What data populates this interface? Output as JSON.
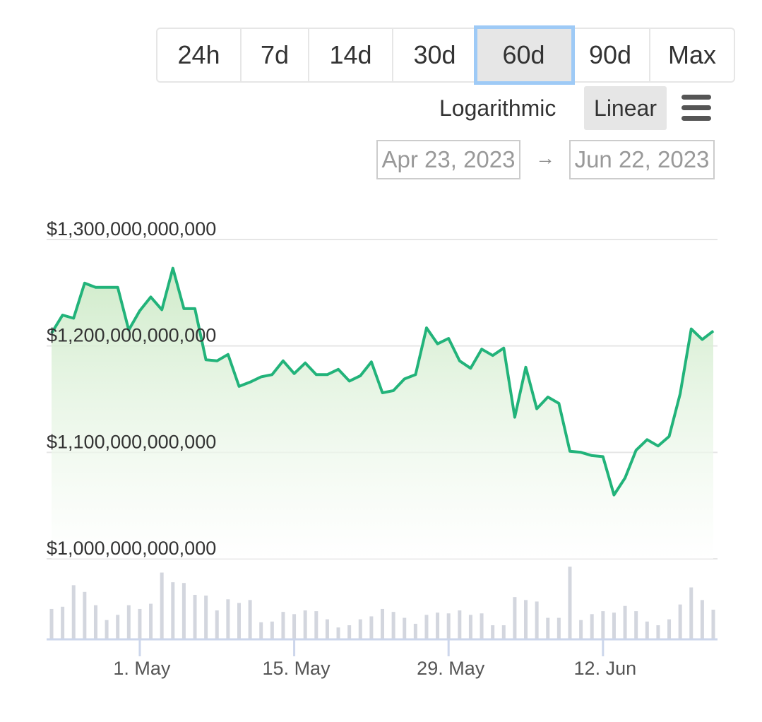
{
  "range_selector": {
    "buttons": [
      "24h",
      "7d",
      "14d",
      "30d",
      "60d",
      "90d",
      "Max"
    ],
    "selected": "60d"
  },
  "scale": {
    "logarithmic_label": "Logarithmic",
    "linear_label": "Linear",
    "selected": "Linear"
  },
  "menu_icon": "hamburger-menu-icon",
  "date_range": {
    "from": "Apr 23, 2023",
    "arrow": "→",
    "to": "Jun 22, 2023"
  },
  "colors": {
    "line": "#22b37a",
    "area_top": "#cdeac7",
    "volume": "#d3d6de",
    "grid": "#e6e6e6",
    "selected_outline": "#9ecaf6"
  },
  "chart_data": {
    "type": "area",
    "title": "",
    "xlabel": "",
    "ylabel": "",
    "ylim": [
      1000000000000,
      1300000000000
    ],
    "y_tick_labels": [
      "$1,300,000,000,000",
      "$1,200,000,000,000",
      "$1,100,000,000,000",
      "$1,000,000,000,000"
    ],
    "y_ticks": [
      1300000000000,
      1200000000000,
      1100000000000,
      1000000000000
    ],
    "x_tick_labels": [
      "1. May",
      "15. May",
      "29. May",
      "12. Jun"
    ],
    "x_ticks": [
      "2023-05-01",
      "2023-05-15",
      "2023-05-29",
      "2023-06-12"
    ],
    "x_start": "2023-04-23",
    "x_end": "2023-06-22",
    "grid": true,
    "series": [
      {
        "values": [
          [
            "2023-04-23",
            1212000000000
          ],
          [
            "2023-04-24",
            1229000000000
          ],
          [
            "2023-04-25",
            1226000000000
          ],
          [
            "2023-04-26",
            1259000000000
          ],
          [
            "2023-04-27",
            1255000000000
          ],
          [
            "2023-04-28",
            1255000000000
          ],
          [
            "2023-04-29",
            1255000000000
          ],
          [
            "2023-04-30",
            1215000000000
          ],
          [
            "2023-05-01",
            1233000000000
          ],
          [
            "2023-05-02",
            1246000000000
          ],
          [
            "2023-05-03",
            1234000000000
          ],
          [
            "2023-05-04",
            1273000000000
          ],
          [
            "2023-05-05",
            1235000000000
          ],
          [
            "2023-05-06",
            1235000000000
          ],
          [
            "2023-05-07",
            1187000000000
          ],
          [
            "2023-05-08",
            1186000000000
          ],
          [
            "2023-05-09",
            1192000000000
          ],
          [
            "2023-05-10",
            1162000000000
          ],
          [
            "2023-05-11",
            1166000000000
          ],
          [
            "2023-05-12",
            1171000000000
          ],
          [
            "2023-05-13",
            1173000000000
          ],
          [
            "2023-05-14",
            1186000000000
          ],
          [
            "2023-05-15",
            1174000000000
          ],
          [
            "2023-05-16",
            1184000000000
          ],
          [
            "2023-05-17",
            1173000000000
          ],
          [
            "2023-05-18",
            1173000000000
          ],
          [
            "2023-05-19",
            1178000000000
          ],
          [
            "2023-05-20",
            1167000000000
          ],
          [
            "2023-05-21",
            1172000000000
          ],
          [
            "2023-05-22",
            1185000000000
          ],
          [
            "2023-05-23",
            1156000000000
          ],
          [
            "2023-05-24",
            1158000000000
          ],
          [
            "2023-05-25",
            1169000000000
          ],
          [
            "2023-05-26",
            1173000000000
          ],
          [
            "2023-05-27",
            1217000000000
          ],
          [
            "2023-05-28",
            1202000000000
          ],
          [
            "2023-05-29",
            1207000000000
          ],
          [
            "2023-05-30",
            1186000000000
          ],
          [
            "2023-05-31",
            1179000000000
          ],
          [
            "2023-06-01",
            1197000000000
          ],
          [
            "2023-06-02",
            1191000000000
          ],
          [
            "2023-06-03",
            1198000000000
          ],
          [
            "2023-06-04",
            1133000000000
          ],
          [
            "2023-06-05",
            1180000000000
          ],
          [
            "2023-06-06",
            1141000000000
          ],
          [
            "2023-06-07",
            1152000000000
          ],
          [
            "2023-06-08",
            1146000000000
          ],
          [
            "2023-06-09",
            1101000000000
          ],
          [
            "2023-06-10",
            1100000000000
          ],
          [
            "2023-06-11",
            1097000000000
          ],
          [
            "2023-06-12",
            1096000000000
          ],
          [
            "2023-06-13",
            1060000000000
          ],
          [
            "2023-06-14",
            1076000000000
          ],
          [
            "2023-06-15",
            1102000000000
          ],
          [
            "2023-06-16",
            1112000000000
          ],
          [
            "2023-06-17",
            1106000000000
          ],
          [
            "2023-06-18",
            1115000000000
          ],
          [
            "2023-06-19",
            1155000000000
          ],
          [
            "2023-06-20",
            1216000000000
          ],
          [
            "2023-06-21",
            1206000000000
          ],
          [
            "2023-06-22",
            1214000000000
          ]
        ]
      }
    ],
    "volume_relative": [
      0.41,
      0.44,
      0.73,
      0.64,
      0.46,
      0.26,
      0.33,
      0.46,
      0.41,
      0.48,
      0.9,
      0.77,
      0.76,
      0.6,
      0.59,
      0.39,
      0.54,
      0.49,
      0.53,
      0.23,
      0.24,
      0.37,
      0.34,
      0.39,
      0.38,
      0.27,
      0.16,
      0.19,
      0.27,
      0.31,
      0.41,
      0.37,
      0.29,
      0.21,
      0.33,
      0.36,
      0.35,
      0.39,
      0.33,
      0.35,
      0.19,
      0.19,
      0.57,
      0.53,
      0.51,
      0.29,
      0.29,
      0.98,
      0.26,
      0.34,
      0.38,
      0.36,
      0.45,
      0.38,
      0.24,
      0.19,
      0.27,
      0.47,
      0.7,
      0.53,
      0.4
    ]
  }
}
